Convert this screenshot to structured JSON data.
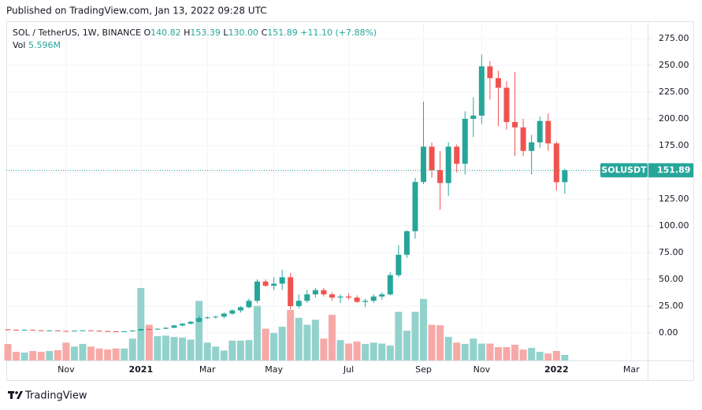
{
  "header": {
    "published": "Published on TradingView.com, Jan 13, 2022 09:28 UTC",
    "symbol": "SOL / TetherUS, 1W, BINANCE",
    "ohlc": [
      {
        "label": "O",
        "value": "140.82"
      },
      {
        "label": "H",
        "value": "153.39"
      },
      {
        "label": "L",
        "value": "130.00"
      },
      {
        "label": "C",
        "value": "151.89"
      }
    ],
    "change": "+11.10 (+7.88%)",
    "volume_label": "Vol",
    "volume_value": "5.596M"
  },
  "footer": {
    "brand": "TradingView"
  },
  "chart_data": {
    "type": "candlestick",
    "categories": [
      null,
      null,
      null,
      null,
      null,
      null,
      null,
      "Nov",
      null,
      null,
      null,
      null,
      null,
      null,
      null,
      null,
      "2021",
      null,
      null,
      null,
      null,
      null,
      null,
      null,
      "Mar",
      null,
      null,
      null,
      null,
      null,
      null,
      null,
      "May",
      null,
      null,
      null,
      null,
      null,
      null,
      null,
      null,
      "Jul",
      null,
      null,
      null,
      null,
      null,
      null,
      null,
      null,
      "Sep",
      null,
      null,
      null,
      null,
      null,
      null,
      "Nov",
      null,
      null,
      null,
      null,
      null,
      null,
      null,
      null,
      "2022",
      null,
      null,
      null,
      null,
      null,
      null,
      null,
      null,
      "Mar",
      null,
      null
    ],
    "open": [
      3.3,
      3.0,
      2.8,
      2.9,
      2.4,
      2.2,
      2.3,
      1.9,
      1.6,
      2.1,
      2.4,
      2.0,
      1.7,
      1.5,
      1.4,
      1.5,
      2.2,
      3.6,
      3.2,
      3.9,
      4.8,
      7.0,
      8.6,
      10.4,
      14.0,
      14.5,
      15.2,
      18.0,
      21.0,
      24.0,
      30.0,
      48.0,
      44.0,
      46.0,
      52.0,
      25.0,
      30.0,
      36.0,
      40.0,
      36.0,
      33.0,
      34.0,
      33.0,
      29.0,
      30.0,
      34.0,
      36,
      54,
      73,
      95,
      141,
      174,
      152,
      140,
      174,
      158,
      200,
      203,
      249,
      238,
      229,
      197,
      192,
      170,
      178,
      198,
      177,
      140.82,
      null,
      null,
      null,
      null,
      null,
      null,
      null,
      null,
      null,
      null
    ],
    "high": [
      3.6,
      3.3,
      3.2,
      3.0,
      2.6,
      2.5,
      2.4,
      2.0,
      2.2,
      2.6,
      2.5,
      2.2,
      1.9,
      1.7,
      1.6,
      2.4,
      3.9,
      4.0,
      4.2,
      5.2,
      7.5,
      9.2,
      11.0,
      16.0,
      15.5,
      16.0,
      19.0,
      22.0,
      25.0,
      32.0,
      50.0,
      50.0,
      52.0,
      59.0,
      56.0,
      36.0,
      40.0,
      42.0,
      42.0,
      38.0,
      36.0,
      37.0,
      35.0,
      32.0,
      36.0,
      38.0,
      57,
      82,
      96,
      145,
      216,
      178,
      170,
      178,
      176,
      207,
      220,
      260,
      254,
      245,
      235,
      244,
      200,
      185,
      202,
      205,
      179,
      153.39,
      null,
      null,
      null,
      null,
      null,
      null,
      null,
      null,
      null,
      null
    ],
    "low": [
      2.8,
      2.6,
      2.5,
      2.3,
      2.1,
      1.9,
      1.8,
      1.5,
      1.5,
      2.0,
      1.9,
      1.6,
      1.3,
      1.2,
      1.2,
      1.4,
      2.0,
      3.0,
      3.0,
      3.6,
      4.5,
      6.0,
      8.0,
      9.8,
      13.0,
      13.5,
      13.5,
      17.0,
      19.0,
      23.0,
      28.0,
      43.0,
      40.0,
      40.0,
      22.0,
      23.0,
      28.0,
      33.0,
      34.0,
      30.0,
      28.0,
      31.0,
      28.0,
      24.0,
      28.0,
      31.0,
      35,
      52,
      70,
      88,
      139,
      145,
      115,
      128,
      150,
      148,
      183,
      195,
      218,
      193,
      190,
      165,
      165,
      148,
      173,
      170,
      133,
      130.0,
      null,
      null,
      null,
      null,
      null,
      null,
      null,
      null,
      null,
      null
    ],
    "close": [
      3.0,
      2.8,
      2.9,
      2.4,
      2.2,
      2.3,
      1.9,
      1.6,
      2.1,
      2.4,
      2.0,
      1.7,
      1.5,
      1.4,
      1.5,
      2.2,
      3.6,
      3.2,
      3.9,
      4.8,
      7.0,
      8.6,
      10.4,
      14.0,
      14.5,
      15.2,
      18.0,
      21.0,
      24.0,
      30.0,
      48.0,
      44.0,
      46.0,
      52.0,
      25.0,
      30.0,
      36.0,
      40.0,
      36.0,
      33.0,
      34.0,
      33.0,
      29.0,
      30.0,
      34.0,
      36.0,
      54,
      73,
      95,
      141,
      174,
      152,
      140,
      174,
      158,
      200,
      203,
      249,
      238,
      229,
      197,
      192,
      170,
      178,
      198,
      177,
      140.79,
      151.89,
      null,
      null,
      null,
      null,
      null,
      null,
      null,
      null,
      null,
      null
    ],
    "volume": [
      16.6,
      8.7,
      7.9,
      9.5,
      8.7,
      9.5,
      10.3,
      18,
      14,
      16.6,
      14,
      12,
      11,
      12,
      12,
      22,
      73,
      36,
      24.5,
      25,
      23.7,
      23,
      21,
      60,
      18,
      14,
      10,
      20,
      20,
      20.5,
      55,
      32,
      27.6,
      34,
      51,
      43,
      36,
      41,
      22,
      46,
      20.5,
      17,
      19,
      16.6,
      18,
      17,
      15,
      49,
      30,
      49,
      62,
      36,
      35.5,
      23.7,
      18,
      16.6,
      22,
      17,
      17,
      13.4,
      13.4,
      15.8,
      11,
      12.6,
      8.7,
      7,
      9.5,
      5.596,
      null,
      null,
      null,
      null,
      null,
      null,
      null,
      null,
      null,
      null
    ],
    "ylim": [
      -25.7,
      290.4
    ],
    "yticks": [
      {
        "value": 0,
        "label": "0.00"
      },
      {
        "value": 25,
        "label": "25.00"
      },
      {
        "value": 50,
        "label": "50.00"
      },
      {
        "value": 75,
        "label": "75.00"
      },
      {
        "value": 100,
        "label": "100.00"
      },
      {
        "value": 125,
        "label": "125.00"
      },
      {
        "value": 150,
        "label": "150.00"
      },
      {
        "value": 175,
        "label": "175.00"
      },
      {
        "value": 200,
        "label": "200.00"
      },
      {
        "value": 225,
        "label": "225.00"
      },
      {
        "value": 250,
        "label": "250.00"
      },
      {
        "value": 275,
        "label": "275.00"
      }
    ],
    "grid": true,
    "up_color": "#26a69a",
    "down_color": "#ef5350",
    "volume_up_color": "#93d2cc",
    "volume_down_color": "#f7a9a7",
    "last_symbol": "SOLUSDT",
    "last_price": 151.89
  }
}
